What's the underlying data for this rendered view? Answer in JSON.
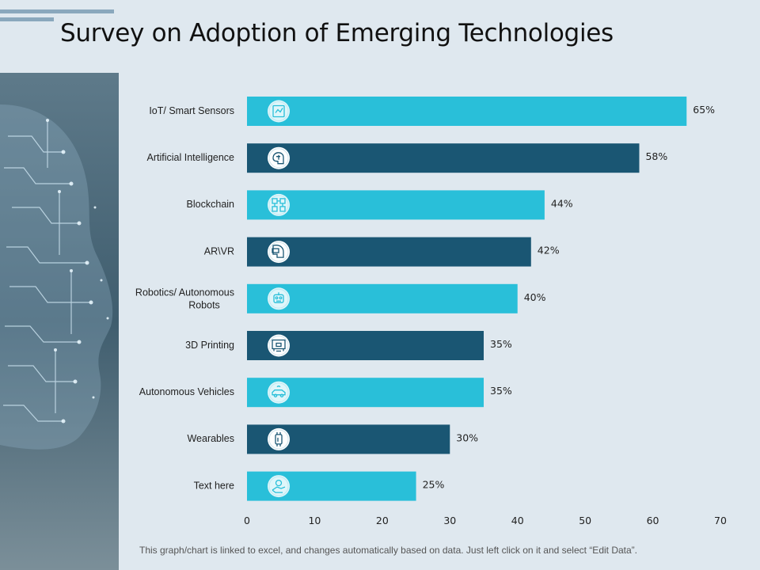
{
  "page": {
    "title": "Survey on Adoption of Emerging Technologies"
  },
  "footer": {
    "note": "This graph/chart is linked to excel, and changes automatically based on data. Just left click on it and select “Edit Data”."
  },
  "colors": {
    "light_bar": "#29bfd9",
    "dark_bar": "#1a5673",
    "background": "#dfe8ef",
    "accent": "#8aa8bd"
  },
  "chart_data": {
    "type": "bar",
    "orientation": "horizontal",
    "title": "Survey on Adoption of Emerging Technologies",
    "categories": [
      "IoT/ Smart Sensors",
      "Artificial Intelligence",
      "Blockchain",
      "AR\\VR",
      "Robotics/ Autonomous Robots",
      "3D Printing",
      "Autonomous Vehicles",
      "Wearables",
      "Text here"
    ],
    "values": [
      65,
      58,
      44,
      42,
      40,
      35,
      35,
      30,
      25
    ],
    "value_labels": [
      "65%",
      "58%",
      "44%",
      "42%",
      "40%",
      "35%",
      "35%",
      "30%",
      "25%"
    ],
    "icons": [
      "sensor-icon",
      "brain-icon",
      "blockchain-icon",
      "vr-headset-icon",
      "robot-icon",
      "3d-printer-icon",
      "car-icon",
      "wearable-icon",
      "hand-icon"
    ],
    "xlim": [
      0,
      70
    ],
    "xticks": [
      0,
      10,
      20,
      30,
      40,
      50,
      60,
      70
    ],
    "xlabel": "",
    "ylabel": "",
    "grid": false
  }
}
